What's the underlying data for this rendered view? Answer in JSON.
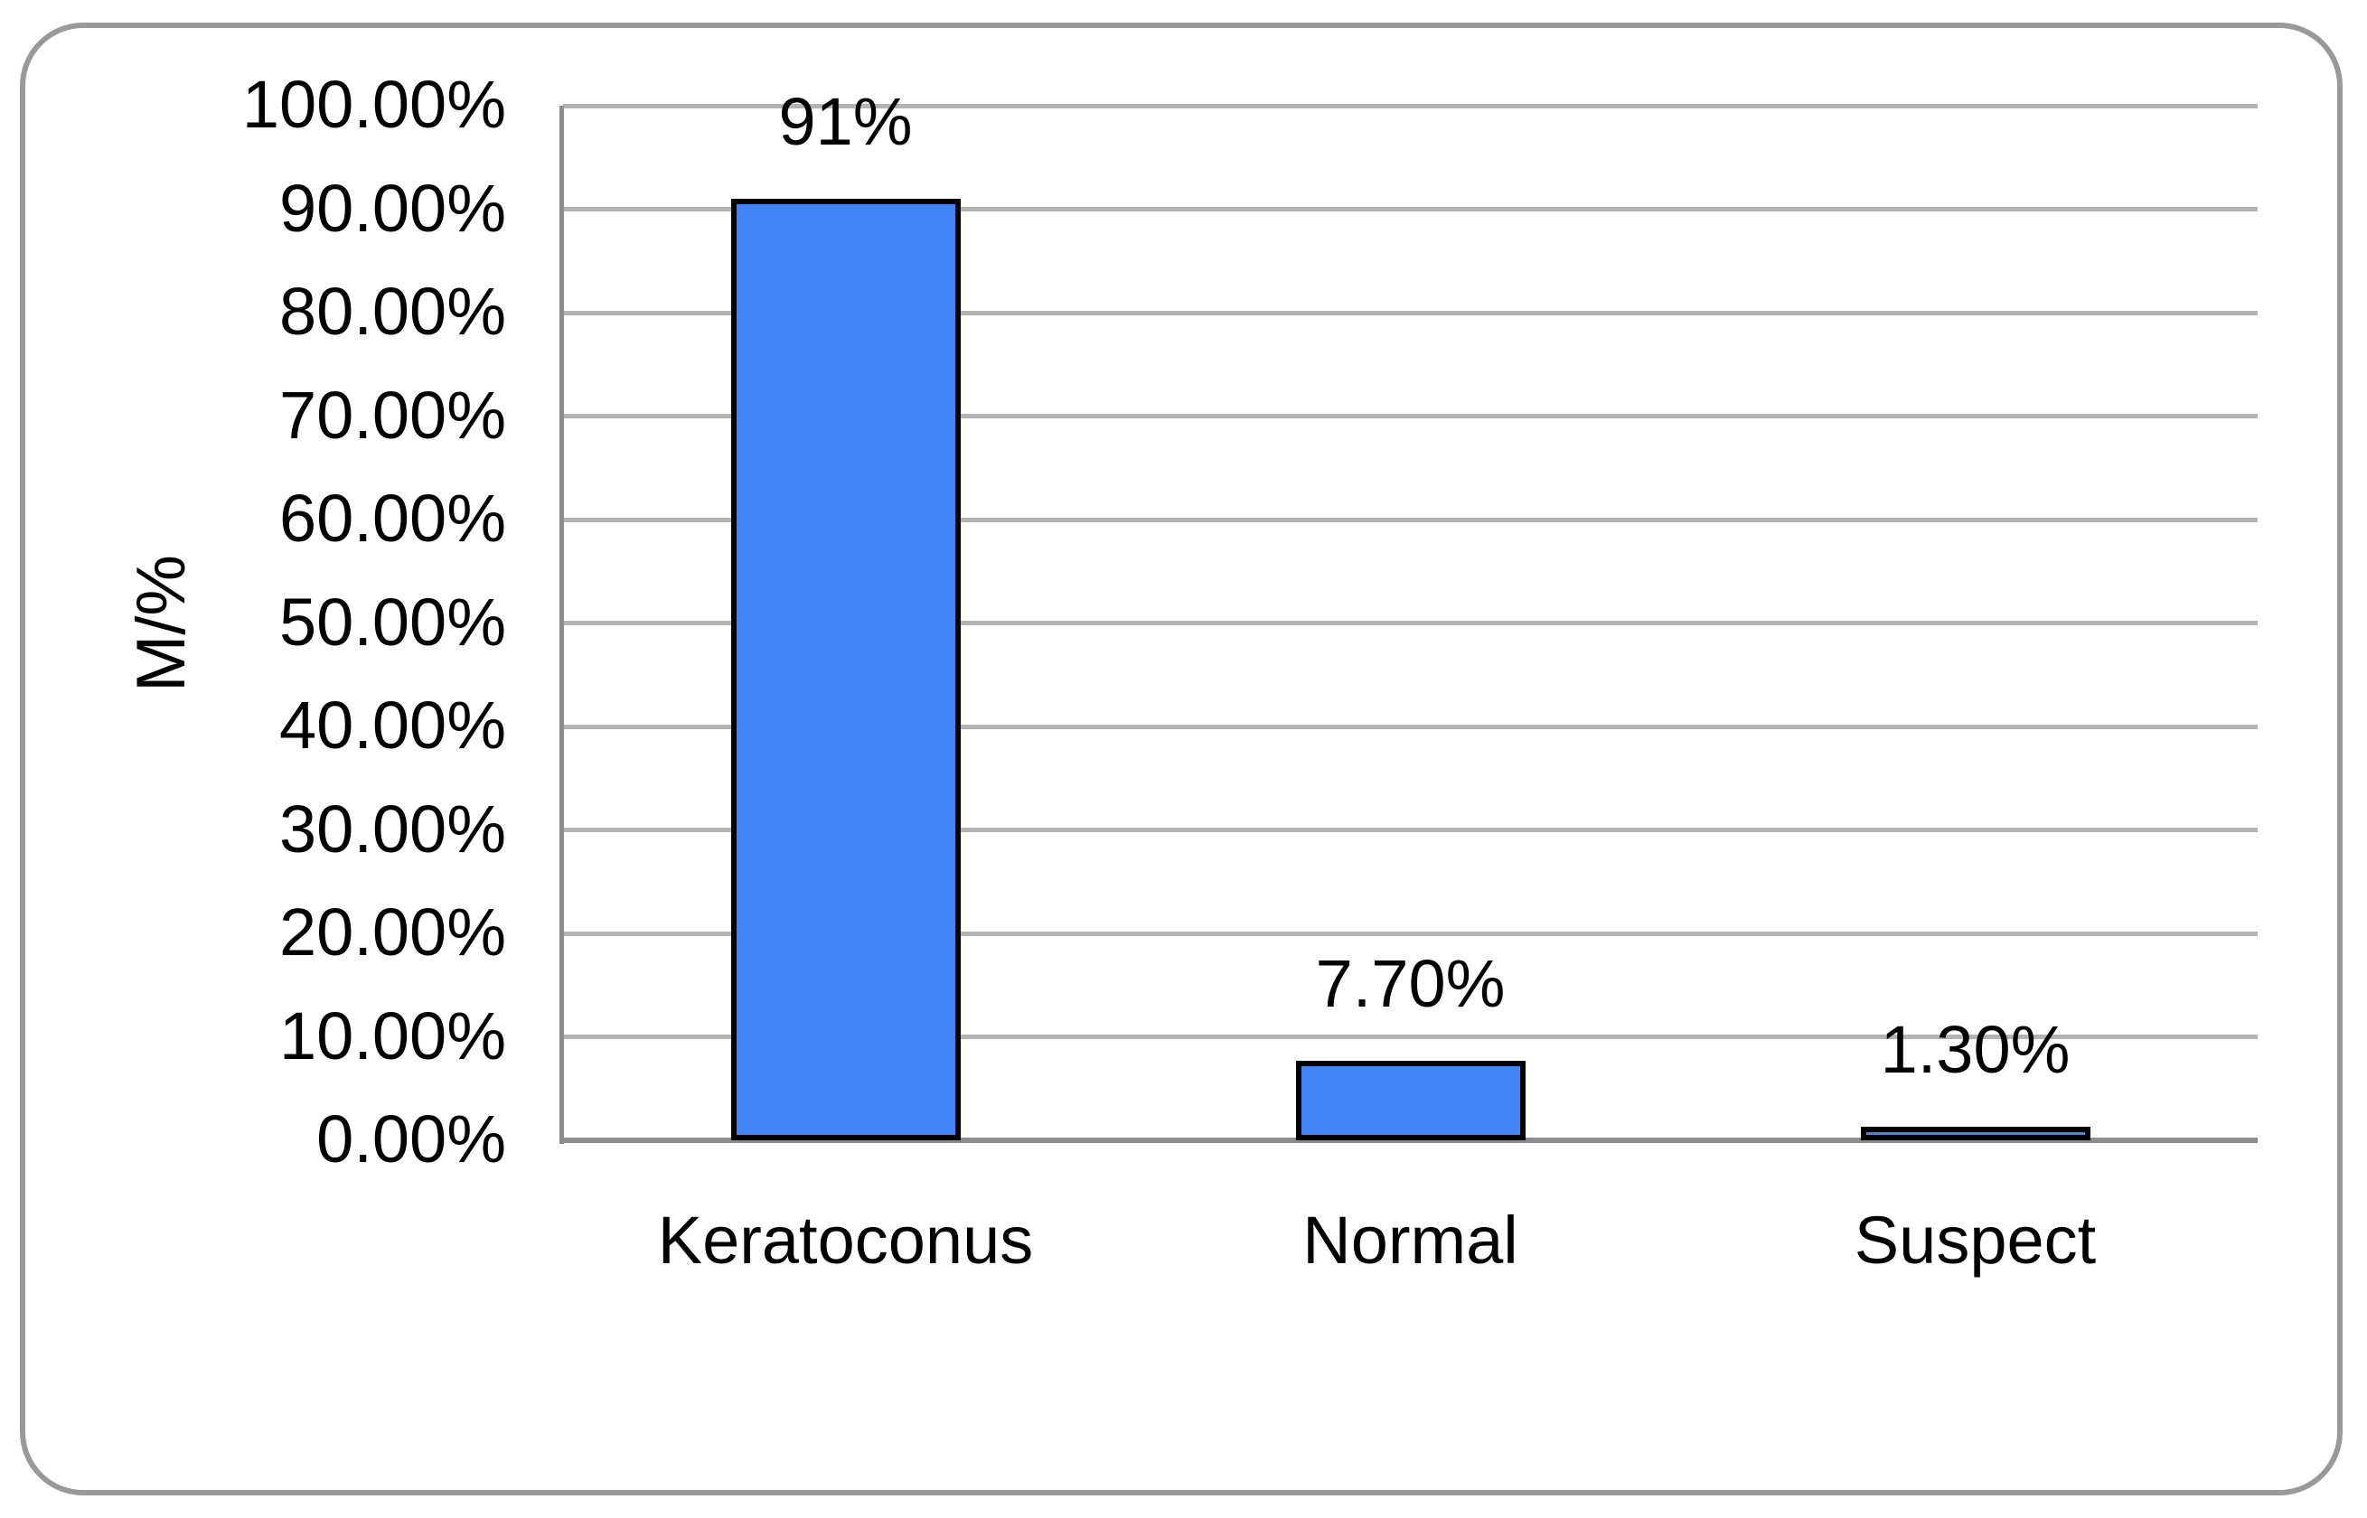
{
  "chart_data": {
    "type": "bar",
    "title": "",
    "xlabel": "",
    "ylabel": "M/%",
    "categories": [
      "Keratoconus",
      "Normal",
      "Suspect"
    ],
    "values": [
      91,
      7.7,
      1.3
    ],
    "data_labels": [
      "91%",
      "7.70%",
      "1.30%"
    ],
    "ylim": [
      0,
      100
    ],
    "ytick_step": 10,
    "ytick_labels": [
      "0.00%",
      "10.00%",
      "20.00%",
      "30.00%",
      "40.00%",
      "50.00%",
      "60.00%",
      "70.00%",
      "80.00%",
      "90.00%",
      "100.00%"
    ],
    "grid": "horizontal",
    "legend": "none",
    "colors": {
      "bar_fill": "#4285F4",
      "bar_border": "#000000",
      "gridline": "#B3B3B3",
      "axis_line": "#8C8C8C",
      "frame_border": "#999999",
      "background": "#FFFFFF",
      "text": "#000000"
    }
  }
}
